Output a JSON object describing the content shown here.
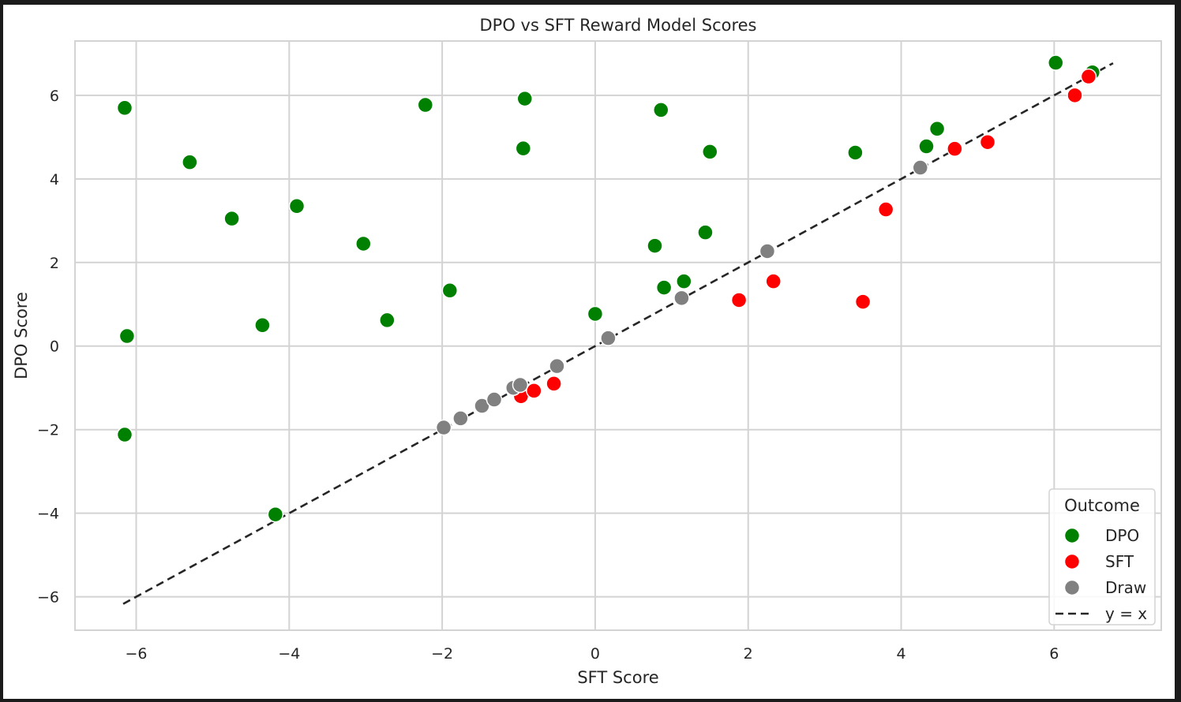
{
  "chart_data": {
    "type": "scatter",
    "title": "DPO vs SFT Reward Model Scores",
    "xlabel": "SFT Score",
    "ylabel": "DPO Score",
    "xlim": [
      -6.8,
      7.4
    ],
    "ylim": [
      -6.8,
      7.3
    ],
    "xticks": [
      -6,
      -4,
      -2,
      0,
      2,
      4,
      6
    ],
    "yticks": [
      -6,
      -4,
      -2,
      0,
      2,
      4,
      6
    ],
    "xtick_labels": [
      "−6",
      "−4",
      "−2",
      "0",
      "2",
      "4",
      "6"
    ],
    "ytick_labels": [
      "−6",
      "−4",
      "−2",
      "0",
      "2",
      "4",
      "6"
    ],
    "grid": true,
    "legend": {
      "title": "Outcome",
      "position": "bottom-right",
      "entries": [
        {
          "label": "DPO",
          "color": "#008000",
          "kind": "marker"
        },
        {
          "label": "SFT",
          "color": "#ff0000",
          "kind": "marker"
        },
        {
          "label": "Draw",
          "color": "#808080",
          "kind": "marker"
        },
        {
          "label": "y = x",
          "color": "#262626",
          "kind": "dashed-line"
        }
      ]
    },
    "reference_line": {
      "label": "y = x",
      "from": -6.17,
      "to": 6.77,
      "color": "#262626"
    },
    "series": [
      {
        "name": "DPO",
        "color": "#008000",
        "points": [
          [
            -6.15,
            5.7
          ],
          [
            -5.3,
            4.4
          ],
          [
            -4.75,
            3.05
          ],
          [
            -3.9,
            3.35
          ],
          [
            -4.35,
            0.5
          ],
          [
            -3.03,
            2.45
          ],
          [
            -2.72,
            0.62
          ],
          [
            -2.22,
            5.77
          ],
          [
            -1.9,
            1.33
          ],
          [
            -0.92,
            5.92
          ],
          [
            -0.94,
            4.73
          ],
          [
            -6.12,
            0.24
          ],
          [
            -6.15,
            -2.12
          ],
          [
            -4.18,
            -4.03
          ],
          [
            0.0,
            0.77
          ],
          [
            0.78,
            2.4
          ],
          [
            0.86,
            5.65
          ],
          [
            0.9,
            1.4
          ],
          [
            1.16,
            1.55
          ],
          [
            1.44,
            2.72
          ],
          [
            1.5,
            4.65
          ],
          [
            3.4,
            4.63
          ],
          [
            4.33,
            4.78
          ],
          [
            4.47,
            5.2
          ],
          [
            6.02,
            6.78
          ],
          [
            6.5,
            6.55
          ]
        ]
      },
      {
        "name": "SFT",
        "color": "#ff0000",
        "points": [
          [
            -0.97,
            -1.2
          ],
          [
            -0.8,
            -1.07
          ],
          [
            -0.54,
            -0.9
          ],
          [
            1.88,
            1.1
          ],
          [
            2.33,
            1.55
          ],
          [
            3.5,
            1.06
          ],
          [
            3.8,
            3.27
          ],
          [
            4.7,
            4.72
          ],
          [
            5.13,
            4.88
          ],
          [
            6.27,
            6.0
          ],
          [
            6.45,
            6.45
          ]
        ]
      },
      {
        "name": "Draw",
        "color": "#808080",
        "points": [
          [
            -1.98,
            -1.95
          ],
          [
            -1.76,
            -1.73
          ],
          [
            -1.48,
            -1.43
          ],
          [
            -1.32,
            -1.28
          ],
          [
            -1.07,
            -1.0
          ],
          [
            -0.98,
            -0.93
          ],
          [
            -0.5,
            -0.48
          ],
          [
            0.17,
            0.19
          ],
          [
            1.13,
            1.15
          ],
          [
            2.25,
            2.27
          ],
          [
            4.25,
            4.27
          ]
        ]
      }
    ]
  }
}
